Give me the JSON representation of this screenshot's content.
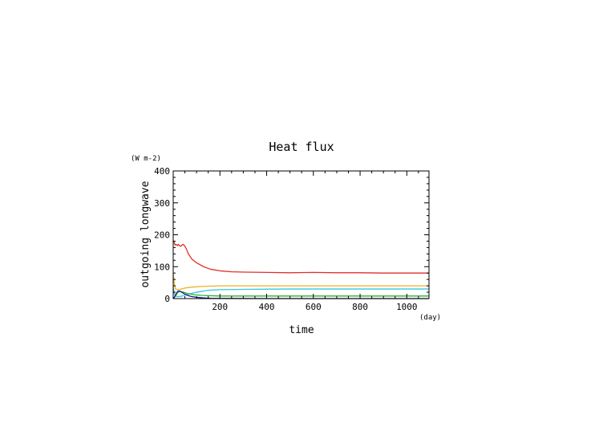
{
  "chart_data": {
    "type": "line",
    "title": "Heat flux",
    "xlabel": "time",
    "ylabel": "outgoing longwave",
    "xunit": "(day)",
    "yunit": "(W m-2)",
    "xlim": [
      0,
      1095
    ],
    "ylim": [
      0,
      400
    ],
    "xticks": [
      200,
      400,
      600,
      800,
      1000
    ],
    "yticks": [
      0,
      100,
      200,
      300,
      400
    ],
    "grid": false,
    "series": [
      {
        "color": "#e0302a",
        "x": [
          0,
          3,
          8,
          12,
          18,
          22,
          28,
          33,
          38,
          43,
          48,
          55,
          65,
          80,
          100,
          130,
          160,
          200,
          250,
          300,
          400,
          500,
          600,
          700,
          800,
          900,
          1000,
          1095
        ],
        "y": [
          180,
          178,
          168,
          170,
          166,
          170,
          165,
          164,
          168,
          170,
          166,
          158,
          140,
          124,
          112,
          100,
          92,
          87,
          84,
          83,
          82,
          81,
          82,
          81,
          81,
          80,
          80,
          80
        ]
      },
      {
        "color": "#f0b020",
        "x": [
          0,
          5,
          10,
          20,
          30,
          50,
          80,
          120,
          200,
          300,
          500,
          700,
          900,
          1095
        ],
        "y": [
          78,
          45,
          30,
          28,
          29,
          33,
          36,
          38,
          40,
          40,
          40,
          40,
          40,
          40
        ]
      },
      {
        "color": "#30c8e0",
        "x": [
          0,
          5,
          10,
          20,
          40,
          60,
          100,
          150,
          200,
          300,
          500,
          700,
          900,
          1095
        ],
        "y": [
          35,
          15,
          8,
          6,
          8,
          13,
          20,
          26,
          28,
          29,
          30,
          30,
          30,
          30
        ]
      },
      {
        "color": "#30b030",
        "x": [
          0,
          10,
          20,
          30,
          45,
          60,
          90,
          120,
          160,
          200,
          300,
          500,
          800,
          1095
        ],
        "y": [
          0,
          8,
          20,
          22,
          20,
          16,
          12,
          10,
          9,
          8,
          8,
          8,
          8,
          8
        ]
      },
      {
        "color": "#10208c",
        "x": [
          0,
          5,
          12,
          18,
          25,
          32,
          40,
          55,
          75,
          100,
          130,
          160,
          200,
          400,
          700,
          1095
        ],
        "y": [
          0,
          4,
          14,
          22,
          24,
          22,
          18,
          12,
          7,
          4,
          2,
          1,
          0.5,
          0,
          0,
          0
        ]
      }
    ]
  }
}
